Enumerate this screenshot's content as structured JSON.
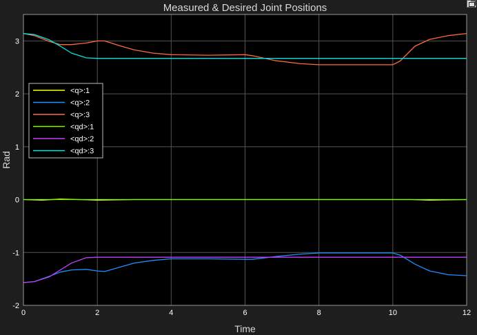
{
  "chart_data": {
    "type": "line",
    "title": "Measured & Desired Joint Positions",
    "xlabel": "Time",
    "ylabel": "Rad",
    "xlim": [
      0,
      12
    ],
    "ylim": [
      -2,
      3.5
    ],
    "xticks": [
      0,
      2,
      4,
      6,
      8,
      10,
      12
    ],
    "yticks": [
      -2,
      -1,
      0,
      1,
      2,
      3
    ],
    "grid": true,
    "legend_position": "upper-left",
    "series": [
      {
        "name": "<q>:1",
        "color": "#ffff00",
        "x": [
          0,
          0.5,
          1,
          1.5,
          2,
          3,
          4,
          5,
          6,
          7,
          8,
          9,
          10,
          10.5,
          11,
          12
        ],
        "y": [
          0,
          -0.01,
          0.01,
          0.0,
          -0.01,
          0.0,
          0.0,
          0.0,
          0.0,
          0.0,
          0.0,
          0.0,
          0.0,
          0.0,
          -0.01,
          0.0
        ]
      },
      {
        "name": "<q>:2",
        "color": "#1e90ff",
        "x": [
          0,
          0.3,
          0.7,
          1.0,
          1.3,
          1.7,
          2.0,
          2.2,
          2.6,
          3.0,
          3.5,
          4.0,
          5.0,
          6.0,
          6.2,
          6.8,
          7.5,
          8.0,
          9.0,
          10.0,
          10.2,
          10.6,
          11.0,
          11.5,
          12.0
        ],
        "y": [
          -1.57,
          -1.55,
          -1.45,
          -1.37,
          -1.33,
          -1.32,
          -1.35,
          -1.36,
          -1.28,
          -1.2,
          -1.15,
          -1.12,
          -1.12,
          -1.13,
          -1.13,
          -1.08,
          -1.03,
          -1.01,
          -1.01,
          -1.01,
          -1.05,
          -1.22,
          -1.35,
          -1.42,
          -1.44
        ]
      },
      {
        "name": "<q>:3",
        "color": "#ff6a3d",
        "x": [
          0,
          0.3,
          0.7,
          1.0,
          1.3,
          1.7,
          2.0,
          2.2,
          2.6,
          3.0,
          3.5,
          4.0,
          5.0,
          6.0,
          6.2,
          6.8,
          7.5,
          8.0,
          9.0,
          10.0,
          10.2,
          10.6,
          11.0,
          11.5,
          12.0
        ],
        "y": [
          3.14,
          3.1,
          2.99,
          2.93,
          2.93,
          2.96,
          3.0,
          3.0,
          2.91,
          2.83,
          2.77,
          2.74,
          2.73,
          2.74,
          2.72,
          2.63,
          2.57,
          2.55,
          2.55,
          2.55,
          2.62,
          2.9,
          3.03,
          3.1,
          3.14
        ]
      },
      {
        "name": "<qd>:1",
        "color": "#7cfc00",
        "x": [
          0,
          12
        ],
        "y": [
          0,
          0
        ]
      },
      {
        "name": "<qd>:2",
        "color": "#c040ff",
        "x": [
          0,
          0.3,
          0.7,
          1.0,
          1.3,
          1.7,
          2.0,
          4.0,
          6.0,
          8.0,
          10.0,
          12.0
        ],
        "y": [
          -1.57,
          -1.55,
          -1.46,
          -1.33,
          -1.2,
          -1.1,
          -1.09,
          -1.09,
          -1.09,
          -1.09,
          -1.09,
          -1.09
        ]
      },
      {
        "name": "<qd>:3",
        "color": "#00e5e5",
        "x": [
          0,
          0.3,
          0.7,
          1.0,
          1.3,
          1.7,
          2.0,
          4.0,
          6.0,
          8.0,
          10.0,
          12.0
        ],
        "y": [
          3.14,
          3.12,
          3.02,
          2.9,
          2.77,
          2.68,
          2.67,
          2.67,
          2.67,
          2.67,
          2.67,
          2.67
        ]
      }
    ]
  },
  "colors": {
    "frame_background": "#1e1e1e",
    "plot_background": "#000000",
    "grid": "#555555",
    "axis_text": "#ffffff",
    "title_text": "#d8d8d8"
  },
  "icons": {
    "restore_button": "undock-restore-icon"
  }
}
